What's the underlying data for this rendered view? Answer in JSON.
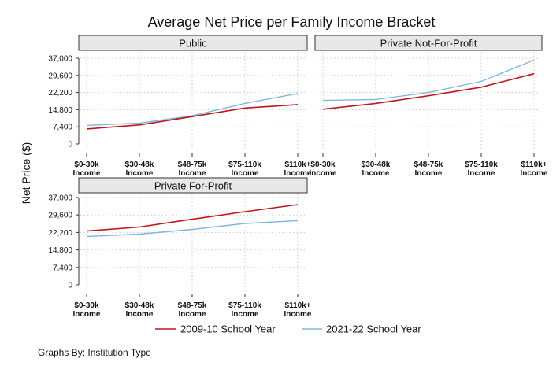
{
  "chart_data": {
    "type": "line",
    "title": "Average Net Price per Family Income Bracket",
    "ylabel": "Net Price ($)",
    "xlabel": "",
    "note": "Graphs By: Institution Type",
    "ylim": [
      0,
      37000
    ],
    "yticks": [
      "0",
      "7,400",
      "14,800",
      "22,200",
      "29,600",
      "37,000"
    ],
    "ytick_values": [
      0,
      7400,
      14800,
      22200,
      29600,
      37000
    ],
    "categories": [
      "$0-30k",
      "$30-48k",
      "$48-75k",
      "$75-110k",
      "$110k+"
    ],
    "category_line2": "Income",
    "grid": true,
    "legend_position": "bottom",
    "series_meta": [
      {
        "name": "2009-10 School Year",
        "color": "#c4151c"
      },
      {
        "name": "2021-22 School Year",
        "color": "#7fb8df"
      }
    ],
    "panels": [
      {
        "title": "Public",
        "series": [
          {
            "name": "2009-10 School Year",
            "values": [
              6500,
              8200,
              11800,
              15500,
              17000
            ]
          },
          {
            "name": "2021-22 School Year",
            "values": [
              8000,
              9000,
              12200,
              17500,
              21800
            ]
          }
        ]
      },
      {
        "title": "Private Not-For-Profit",
        "series": [
          {
            "name": "2009-10 School Year",
            "values": [
              15000,
              17500,
              20800,
              24500,
              30300
            ]
          },
          {
            "name": "2021-22 School Year",
            "values": [
              18800,
              19200,
              22200,
              27000,
              36200
            ]
          }
        ]
      },
      {
        "title": "Private For-Profit",
        "series": [
          {
            "name": "2009-10 School Year",
            "values": [
              22800,
              24500,
              27800,
              31000,
              34000
            ]
          },
          {
            "name": "2021-22 School Year",
            "values": [
              20500,
              21500,
              23500,
              26000,
              27200
            ]
          }
        ]
      }
    ]
  }
}
